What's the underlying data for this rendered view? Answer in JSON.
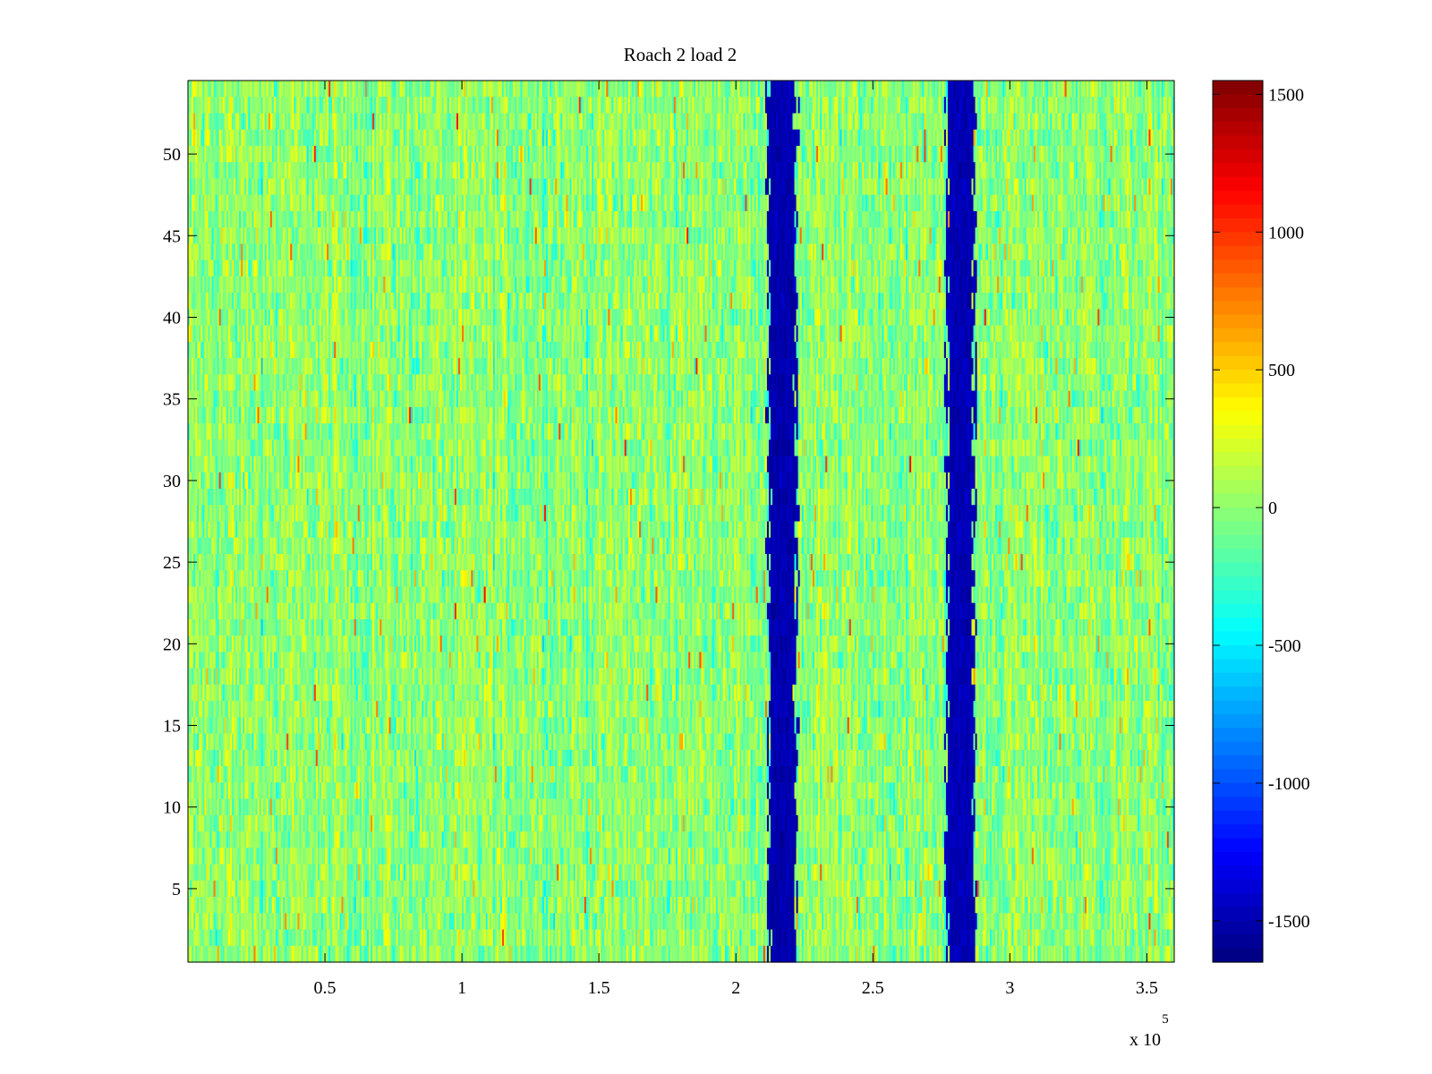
{
  "chart_data": {
    "type": "heatmap",
    "title": "Roach 2 load 2",
    "xlabel": "",
    "ylabel": "",
    "x_range": [
      0,
      360000
    ],
    "y_range": [
      0.5,
      54.5
    ],
    "x_ticks": [
      {
        "value": 50000,
        "label": "0.5"
      },
      {
        "value": 100000,
        "label": "1"
      },
      {
        "value": 150000,
        "label": "1.5"
      },
      {
        "value": 200000,
        "label": "2"
      },
      {
        "value": 250000,
        "label": "2.5"
      },
      {
        "value": 300000,
        "label": "3"
      },
      {
        "value": 350000,
        "label": "3.5"
      }
    ],
    "x_multiplier": {
      "base": "x 10",
      "exponent": "5"
    },
    "y_ticks": [
      {
        "value": 5,
        "label": "5"
      },
      {
        "value": 10,
        "label": "10"
      },
      {
        "value": 15,
        "label": "15"
      },
      {
        "value": 20,
        "label": "20"
      },
      {
        "value": 25,
        "label": "25"
      },
      {
        "value": 30,
        "label": "30"
      },
      {
        "value": 35,
        "label": "35"
      },
      {
        "value": 40,
        "label": "40"
      },
      {
        "value": 45,
        "label": "45"
      },
      {
        "value": 50,
        "label": "50"
      }
    ],
    "rows": 54,
    "colorbar": {
      "colormap": "jet",
      "range": [
        -1650,
        1550
      ],
      "ticks": [
        {
          "value": 1500,
          "label": "1500"
        },
        {
          "value": 1000,
          "label": "1000"
        },
        {
          "value": 500,
          "label": "500"
        },
        {
          "value": 0,
          "label": "0"
        },
        {
          "value": -500,
          "label": "-500"
        },
        {
          "value": -1000,
          "label": "-1000"
        },
        {
          "value": -1500,
          "label": "-1500"
        }
      ]
    },
    "background_level": 0,
    "background_spread": 380,
    "dark_bands": [
      {
        "x_start": 212000,
        "x_end": 222000,
        "value": -1500
      },
      {
        "x_start": 277000,
        "x_end": 287000,
        "value": -1480
      }
    ],
    "grid": false,
    "legend": "none"
  }
}
